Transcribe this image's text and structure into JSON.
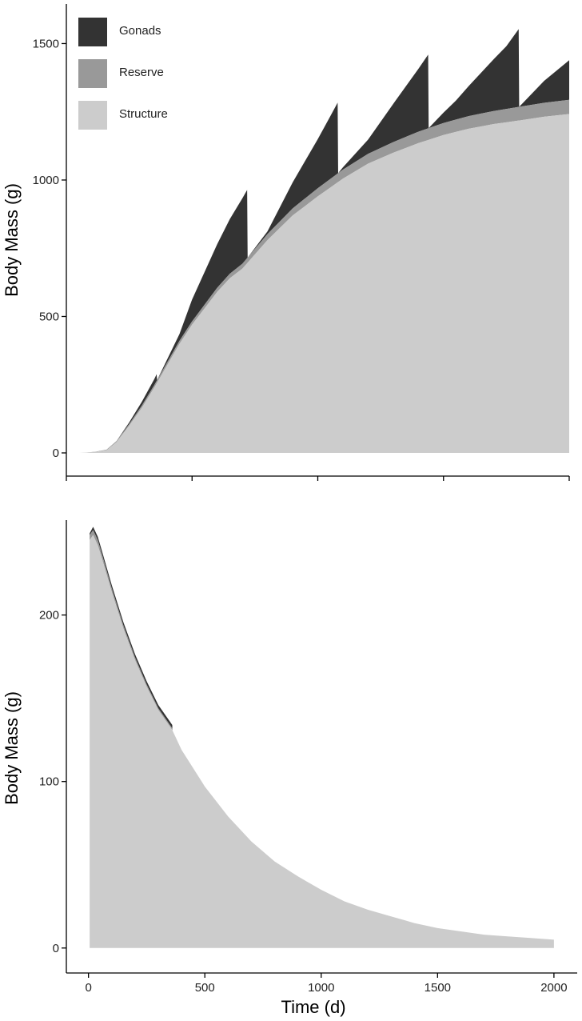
{
  "colors": {
    "gonads": "#333333",
    "reserve": "#999999",
    "structure": "#cccccc",
    "axis": "#000000",
    "background": "#ffffff"
  },
  "legend": [
    {
      "key": "gonads",
      "label": "Gonads"
    },
    {
      "key": "reserve",
      "label": "Reserve"
    },
    {
      "key": "structure",
      "label": "Structure"
    }
  ],
  "xlabel": "Time (d)",
  "chart_data": [
    {
      "type": "area",
      "stacked": true,
      "ylabel": "Body Mass (g)",
      "xlim": [
        0,
        2000
      ],
      "ylim": [
        -85,
        1645
      ],
      "x_ticks": [
        0,
        500,
        1000,
        1500,
        2000
      ],
      "x_tick_labels_shown": false,
      "y_ticks": [
        0,
        500,
        1000,
        1500
      ],
      "y_tick_labels": [
        "0",
        "500",
        "1000",
        "1500"
      ],
      "legend_position": "top-left",
      "grid": false,
      "structure": [
        [
          50,
          0
        ],
        [
          80,
          1
        ],
        [
          120,
          4
        ],
        [
          160,
          10
        ],
        [
          200,
          40
        ],
        [
          250,
          100
        ],
        [
          300,
          165
        ],
        [
          350,
          240
        ],
        [
          400,
          320
        ],
        [
          450,
          400
        ],
        [
          500,
          470
        ],
        [
          550,
          530
        ],
        [
          600,
          590
        ],
        [
          650,
          640
        ],
        [
          700,
          675
        ],
        [
          800,
          780
        ],
        [
          900,
          870
        ],
        [
          1000,
          940
        ],
        [
          1100,
          1005
        ],
        [
          1200,
          1060
        ],
        [
          1300,
          1100
        ],
        [
          1400,
          1135
        ],
        [
          1500,
          1165
        ],
        [
          1600,
          1188
        ],
        [
          1700,
          1205
        ],
        [
          1800,
          1218
        ],
        [
          1900,
          1232
        ],
        [
          2000,
          1242
        ]
      ],
      "reserve": [
        [
          50,
          0
        ],
        [
          80,
          0
        ],
        [
          120,
          1
        ],
        [
          160,
          2
        ],
        [
          200,
          4
        ],
        [
          250,
          6
        ],
        [
          300,
          8
        ],
        [
          350,
          9
        ],
        [
          400,
          10
        ],
        [
          500,
          12
        ],
        [
          600,
          15
        ],
        [
          700,
          18
        ],
        [
          800,
          22
        ],
        [
          900,
          26
        ],
        [
          1000,
          30
        ],
        [
          1200,
          36
        ],
        [
          1400,
          42
        ],
        [
          1600,
          46
        ],
        [
          1800,
          50
        ],
        [
          2000,
          52
        ]
      ],
      "gonads": [
        [
          50,
          0
        ],
        [
          200,
          0
        ],
        [
          250,
          6
        ],
        [
          300,
          14
        ],
        [
          350,
          22
        ],
        [
          359,
          25
        ],
        [
          361,
          0
        ],
        [
          450,
          25
        ],
        [
          500,
          80
        ],
        [
          550,
          120
        ],
        [
          600,
          160
        ],
        [
          650,
          200
        ],
        [
          700,
          240
        ],
        [
          719,
          250
        ],
        [
          721,
          0
        ],
        [
          800,
          10
        ],
        [
          900,
          95
        ],
        [
          1000,
          180
        ],
        [
          1050,
          230
        ],
        [
          1079,
          260
        ],
        [
          1081,
          0
        ],
        [
          1200,
          52
        ],
        [
          1300,
          140
        ],
        [
          1400,
          230
        ],
        [
          1439,
          270
        ],
        [
          1441,
          0
        ],
        [
          1550,
          70
        ],
        [
          1650,
          150
        ],
        [
          1750,
          230
        ],
        [
          1799,
          285
        ],
        [
          1801,
          0
        ],
        [
          1900,
          80
        ],
        [
          2000,
          145
        ]
      ]
    },
    {
      "type": "area",
      "stacked": true,
      "ylabel": "Body Mass (g)",
      "xlim": [
        -95,
        2100
      ],
      "ylim": [
        -15,
        257
      ],
      "x_ticks": [
        0,
        500,
        1000,
        1500,
        2000
      ],
      "x_tick_labels": [
        "0",
        "500",
        "1000",
        "1500",
        "2000"
      ],
      "y_ticks": [
        0,
        100,
        200
      ],
      "y_tick_labels": [
        "0",
        "100",
        "200"
      ],
      "grid": false,
      "structure": [
        [
          5,
          245
        ],
        [
          20,
          248
        ],
        [
          40,
          242
        ],
        [
          60,
          233
        ],
        [
          100,
          214
        ],
        [
          150,
          192
        ],
        [
          200,
          173
        ],
        [
          250,
          157
        ],
        [
          300,
          143
        ],
        [
          360,
          131
        ],
        [
          400,
          119
        ],
        [
          500,
          97
        ],
        [
          600,
          79
        ],
        [
          700,
          64
        ],
        [
          800,
          52
        ],
        [
          900,
          43
        ],
        [
          1000,
          35
        ],
        [
          1100,
          28
        ],
        [
          1200,
          23
        ],
        [
          1300,
          19
        ],
        [
          1400,
          15
        ],
        [
          1500,
          12
        ],
        [
          1600,
          10
        ],
        [
          1700,
          8
        ],
        [
          1800,
          7
        ],
        [
          1900,
          6
        ],
        [
          2000,
          5
        ]
      ],
      "reserve": [
        [
          5,
          3
        ],
        [
          20,
          3
        ],
        [
          40,
          3
        ],
        [
          60,
          2.5
        ],
        [
          100,
          2
        ],
        [
          200,
          1.5
        ],
        [
          300,
          1
        ],
        [
          360,
          1
        ],
        [
          361,
          0
        ],
        [
          2000,
          0
        ]
      ],
      "gonads": [
        [
          5,
          1
        ],
        [
          20,
          2
        ],
        [
          40,
          2
        ],
        [
          60,
          2
        ],
        [
          100,
          2
        ],
        [
          200,
          2
        ],
        [
          300,
          2
        ],
        [
          360,
          2
        ],
        [
          361,
          0
        ],
        [
          2000,
          0
        ]
      ]
    }
  ]
}
